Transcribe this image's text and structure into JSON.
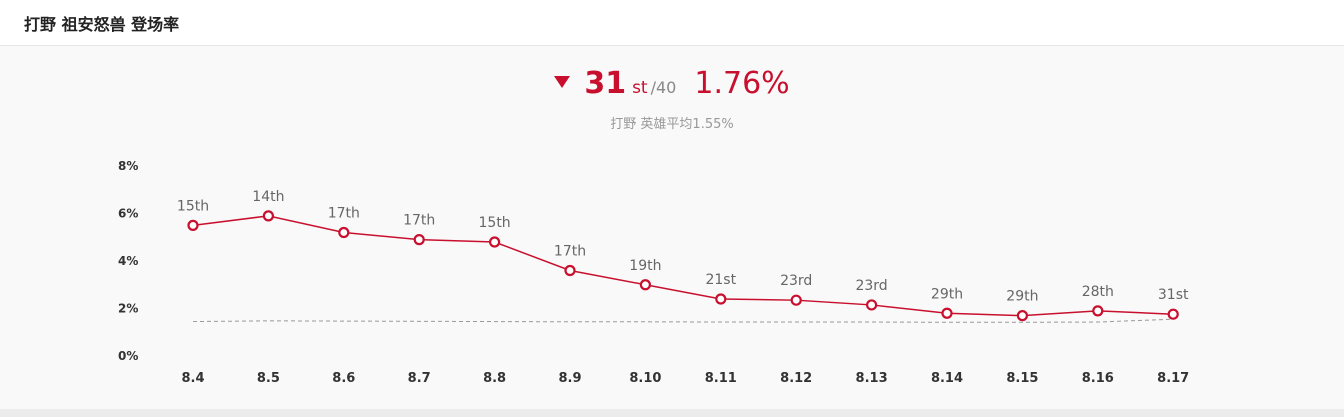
{
  "header": {
    "title": "打野 祖安怒兽 登场率"
  },
  "summary": {
    "rank": "31",
    "rank_suffix": "st",
    "rank_total": "/40",
    "rate": "1.76%",
    "avg_role": "打野",
    "avg_label": "英雄平均1.55%"
  },
  "colors": {
    "accent": "#c8102e",
    "avg_line": "#999999"
  },
  "chart_data": {
    "type": "line",
    "categories": [
      "8.4",
      "8.5",
      "8.6",
      "8.7",
      "8.8",
      "8.9",
      "8.10",
      "8.11",
      "8.12",
      "8.13",
      "8.14",
      "8.15",
      "8.16",
      "8.17"
    ],
    "yticks": [
      "8%",
      "6%",
      "4%",
      "2%",
      "0%"
    ],
    "ylim": [
      0,
      8
    ],
    "series": [
      {
        "values": [
          5.5,
          5.9,
          5.2,
          4.9,
          4.8,
          3.6,
          3.0,
          2.4,
          2.35,
          2.15,
          1.8,
          1.7,
          1.9,
          1.76
        ],
        "labels": [
          "15th",
          "14th",
          "17th",
          "17th",
          "15th",
          "17th",
          "19th",
          "21st",
          "23rd",
          "23rd",
          "29th",
          "29th",
          "28th",
          "31st"
        ]
      },
      {
        "values": [
          1.45,
          1.48,
          1.47,
          1.46,
          1.45,
          1.44,
          1.44,
          1.43,
          1.43,
          1.43,
          1.42,
          1.42,
          1.43,
          1.55
        ]
      }
    ],
    "grid": false
  }
}
